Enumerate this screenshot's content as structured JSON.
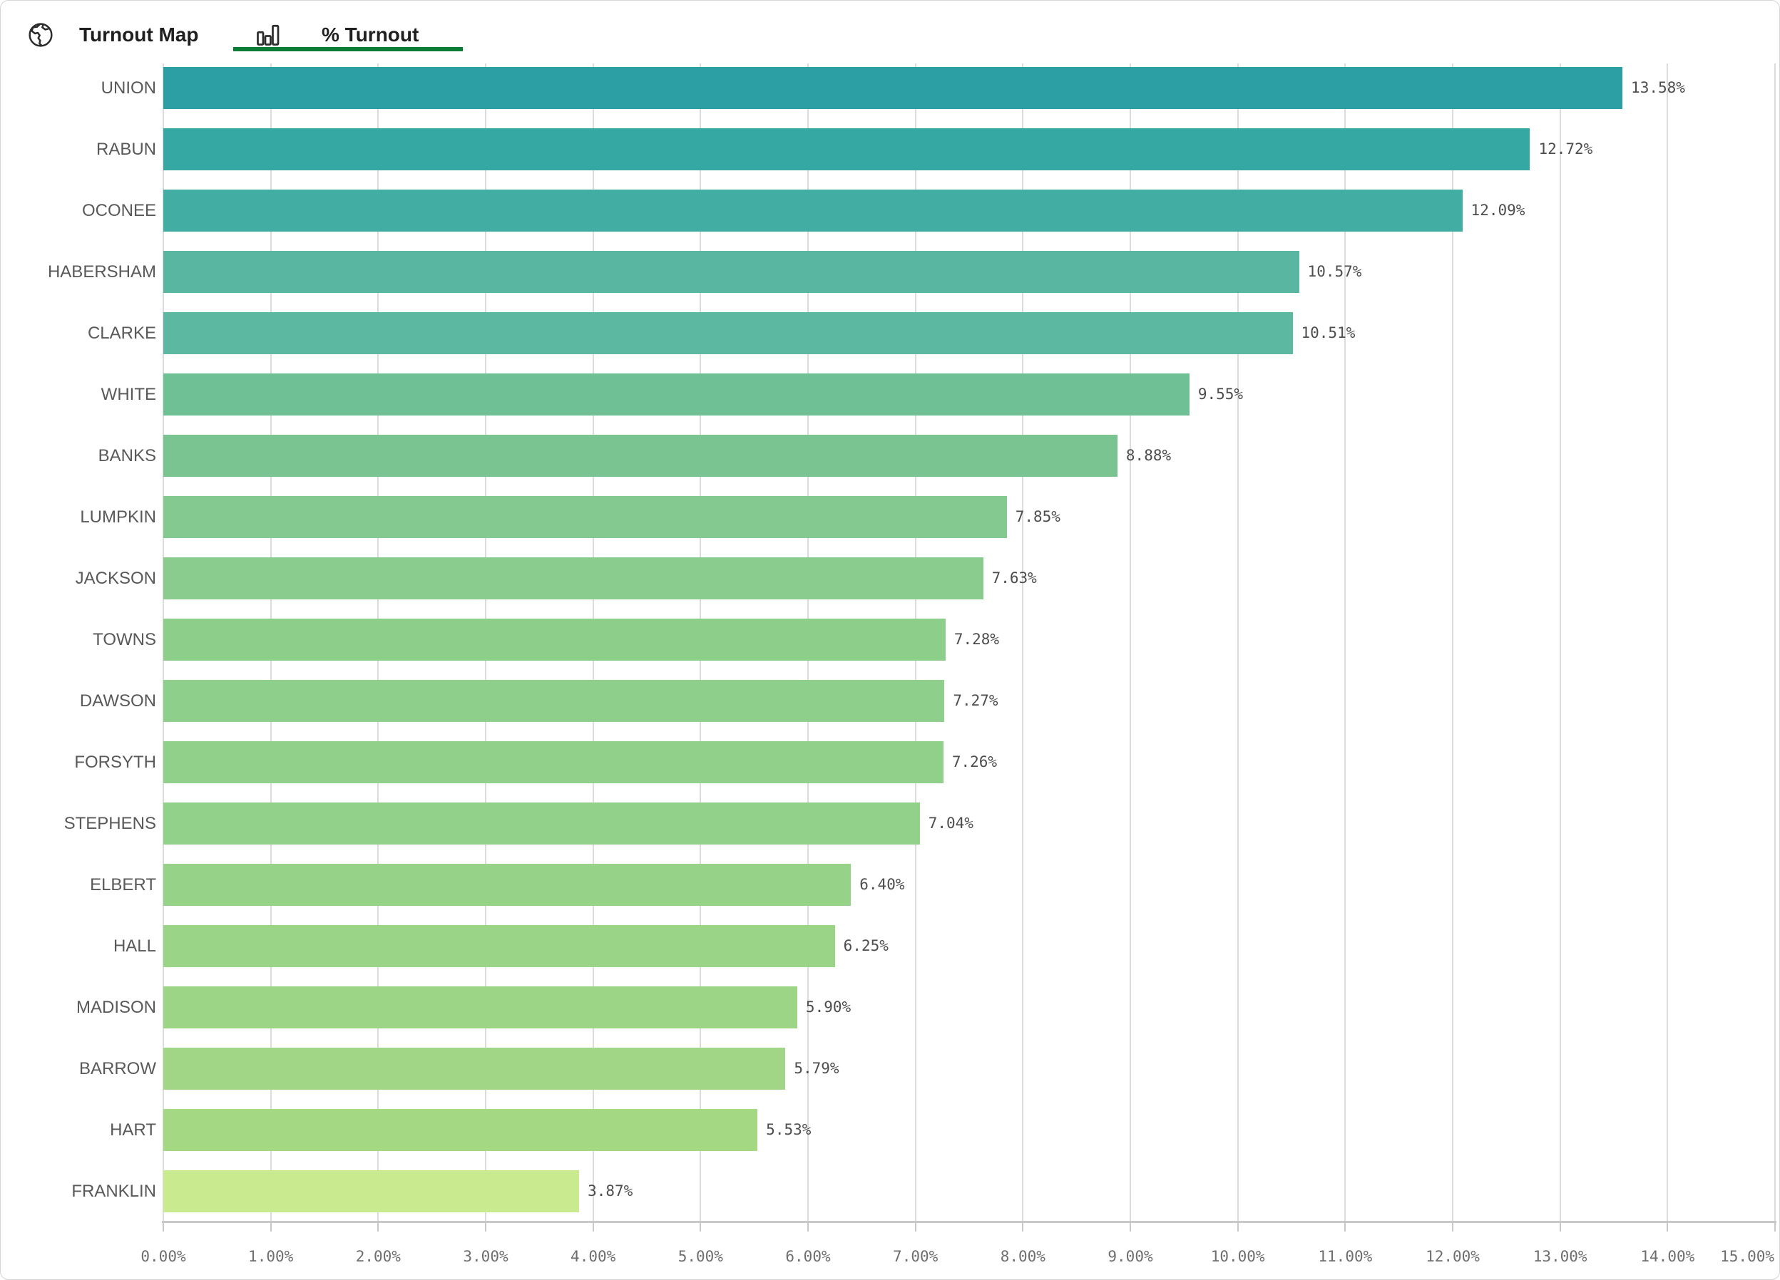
{
  "header": {
    "tabs": [
      {
        "label": "Turnout Map",
        "icon": "globe-icon",
        "active": false
      },
      {
        "label": "% Turnout",
        "icon": "bar-chart-icon",
        "active": true
      }
    ],
    "active_tab": "% Turnout",
    "underline_color": "#0a7c35",
    "icon_color": "#2b2b2b"
  },
  "chart_data": {
    "type": "bar",
    "orientation": "horizontal",
    "title": "% Turnout",
    "categories": [
      "UNION",
      "RABUN",
      "OCONEE",
      "HABERSHAM",
      "CLARKE",
      "WHITE",
      "BANKS",
      "LUMPKIN",
      "JACKSON",
      "TOWNS",
      "DAWSON",
      "FORSYTH",
      "STEPHENS",
      "ELBERT",
      "HALL",
      "MADISON",
      "BARROW",
      "HART",
      "FRANKLIN"
    ],
    "values": [
      13.58,
      12.72,
      12.09,
      10.57,
      10.51,
      9.55,
      8.88,
      7.85,
      7.63,
      7.28,
      7.27,
      7.26,
      7.04,
      6.4,
      6.25,
      5.9,
      5.79,
      5.53,
      3.87
    ],
    "value_labels": [
      "13.58%",
      "12.72%",
      "12.09%",
      "10.57%",
      "10.51%",
      "9.55%",
      "8.88%",
      "7.85%",
      "7.63%",
      "7.28%",
      "7.27%",
      "7.26%",
      "7.04%",
      "6.40%",
      "6.25%",
      "5.90%",
      "5.79%",
      "5.53%",
      "3.87%"
    ],
    "bar_colors": [
      "#2b9fa4",
      "#36a8a3",
      "#42ada3",
      "#58b6a1",
      "#5cb8a0",
      "#70c096",
      "#7ac492",
      "#84c98f",
      "#89cc8d",
      "#8dce8b",
      "#8ecf8b",
      "#90d08a",
      "#92d189",
      "#96d288",
      "#9ad487",
      "#9dd586",
      "#a0d685",
      "#a5d883",
      "#c9ea8f"
    ],
    "x_ticks": [
      "0.00%",
      "1.00%",
      "2.00%",
      "3.00%",
      "4.00%",
      "5.00%",
      "6.00%",
      "7.00%",
      "8.00%",
      "9.00%",
      "10.00%",
      "11.00%",
      "12.00%",
      "13.00%",
      "14.00%",
      "15.00%"
    ],
    "xlim": [
      0,
      15
    ],
    "grid": true,
    "legend": false,
    "grid_color": "#dcdcdc",
    "axis_color": "#c8c8c8"
  }
}
